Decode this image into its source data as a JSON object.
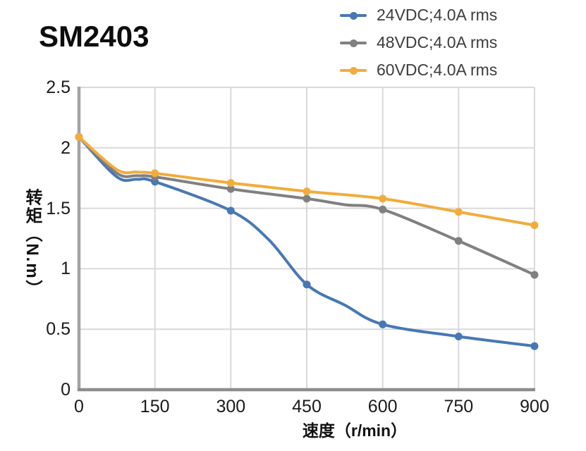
{
  "title": "SM2403",
  "legend": {
    "items": [
      {
        "label": "24VDC;4.0A rms",
        "color": "#4878B4"
      },
      {
        "label": "48VDC;4.0A rms",
        "color": "#808080"
      },
      {
        "label": "60VDC;4.0A rms",
        "color": "#F2AC3C"
      }
    ]
  },
  "axes": {
    "x_title": "速度（r/min）",
    "y_title": "转矩（N.m）"
  },
  "colors": {
    "grid": "#d9d9d9",
    "axis_left": "#a3a3a3",
    "axis_bottom": "#8c8c8c",
    "background": "#ffffff"
  },
  "chart_data": {
    "type": "line",
    "title": "SM2403",
    "xlabel": "速度（r/min）",
    "ylabel": "转矩（N.m）",
    "xlim": [
      0,
      900
    ],
    "ylim": [
      0,
      2.5
    ],
    "x_ticks": [
      0,
      150,
      300,
      450,
      600,
      750,
      900
    ],
    "x_tick_labels": [
      "0",
      "150",
      "300",
      "450",
      "600",
      "750",
      "900"
    ],
    "y_ticks": [
      2.5,
      2,
      1.5,
      1,
      0.5,
      0
    ],
    "y_tick_labels": [
      "2.5",
      "2",
      "1.5",
      "1",
      "0.5",
      "0"
    ],
    "grid": true,
    "legend_position": "top-right",
    "marker_x": [
      0,
      150,
      300,
      450,
      600,
      750,
      900
    ],
    "series": [
      {
        "name": "24VDC;4.0A rms",
        "color": "#4878B4",
        "tick_values": [
          2.09,
          1.72,
          1.48,
          0.87,
          0.54,
          0.44,
          0.36
        ],
        "points": [
          [
            0,
            2.09
          ],
          [
            75,
            1.76
          ],
          [
            115,
            1.74
          ],
          [
            150,
            1.72
          ],
          [
            300,
            1.48
          ],
          [
            375,
            1.24
          ],
          [
            450,
            0.87
          ],
          [
            525,
            0.7
          ],
          [
            600,
            0.54
          ],
          [
            750,
            0.44
          ],
          [
            900,
            0.36
          ]
        ]
      },
      {
        "name": "48VDC;4.0A rms",
        "color": "#808080",
        "tick_values": [
          2.09,
          1.76,
          1.66,
          1.58,
          1.49,
          1.23,
          0.95
        ],
        "points": [
          [
            0,
            2.09
          ],
          [
            75,
            1.79
          ],
          [
            115,
            1.77
          ],
          [
            150,
            1.76
          ],
          [
            300,
            1.66
          ],
          [
            450,
            1.58
          ],
          [
            525,
            1.53
          ],
          [
            600,
            1.49
          ],
          [
            750,
            1.23
          ],
          [
            900,
            0.95
          ]
        ]
      },
      {
        "name": "60VDC;4.0A rms",
        "color": "#F2AC3C",
        "tick_values": [
          2.09,
          1.79,
          1.71,
          1.64,
          1.58,
          1.47,
          1.36
        ],
        "points": [
          [
            0,
            2.09
          ],
          [
            75,
            1.82
          ],
          [
            115,
            1.8
          ],
          [
            150,
            1.79
          ],
          [
            300,
            1.71
          ],
          [
            450,
            1.64
          ],
          [
            600,
            1.58
          ],
          [
            750,
            1.47
          ],
          [
            900,
            1.36
          ]
        ]
      }
    ]
  }
}
